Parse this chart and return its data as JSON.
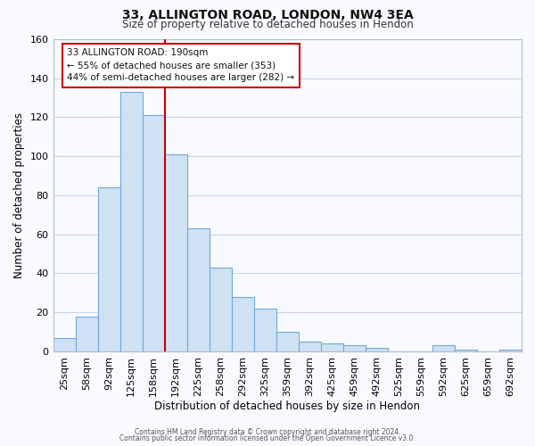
{
  "title": "33, ALLINGTON ROAD, LONDON, NW4 3EA",
  "subtitle": "Size of property relative to detached houses in Hendon",
  "xlabel": "Distribution of detached houses by size in Hendon",
  "ylabel": "Number of detached properties",
  "bar_labels": [
    "25sqm",
    "58sqm",
    "92sqm",
    "125sqm",
    "158sqm",
    "192sqm",
    "225sqm",
    "258sqm",
    "292sqm",
    "325sqm",
    "359sqm",
    "392sqm",
    "425sqm",
    "459sqm",
    "492sqm",
    "525sqm",
    "559sqm",
    "592sqm",
    "625sqm",
    "659sqm",
    "692sqm"
  ],
  "bar_values": [
    7,
    18,
    84,
    133,
    121,
    101,
    63,
    43,
    28,
    22,
    10,
    5,
    4,
    3,
    2,
    0,
    0,
    3,
    1,
    0,
    1
  ],
  "bar_color": "#cfe2f3",
  "bar_edge_color": "#6fa8dc",
  "ylim": [
    0,
    160
  ],
  "yticks": [
    0,
    20,
    40,
    60,
    80,
    100,
    120,
    140,
    160
  ],
  "vline_x": 4.5,
  "vline_color": "#cc0000",
  "annotation_title": "33 ALLINGTON ROAD: 190sqm",
  "annotation_line1": "← 55% of detached houses are smaller (353)",
  "annotation_line2": "44% of semi-detached houses are larger (282) →",
  "footer1": "Contains HM Land Registry data © Crown copyright and database right 2024.",
  "footer2": "Contains public sector information licensed under the Open Government Licence v3.0.",
  "background_color": "#f8faff",
  "grid_color": "#c8d4e8"
}
